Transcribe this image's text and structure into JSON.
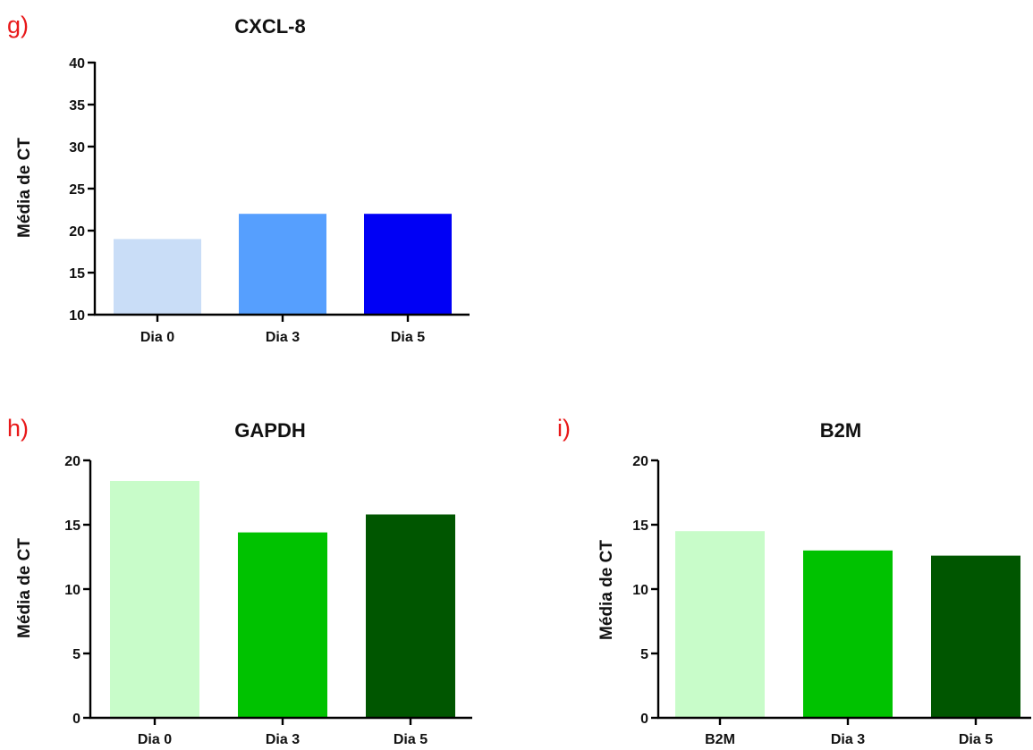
{
  "chart_data": [
    {
      "panel_label": "g)",
      "type": "bar",
      "title": "CXCL-8",
      "ylabel": "Média de CT",
      "categories": [
        "Dia 0",
        "Dia 3",
        "Dia 5"
      ],
      "values": [
        19,
        22,
        22
      ],
      "colors": [
        "#c9ddf7",
        "#569ffe",
        "#0000f5"
      ],
      "ylim": [
        10,
        40
      ],
      "yticks": [
        "10",
        "15",
        "20",
        "25",
        "30",
        "35",
        "40"
      ],
      "grid": false
    },
    {
      "panel_label": "h)",
      "type": "bar",
      "title": "GAPDH",
      "ylabel": "Média de CT",
      "categories": [
        "Dia 0",
        "Dia 3",
        "Dia 5"
      ],
      "values": [
        18.4,
        14.4,
        15.8
      ],
      "colors": [
        "#c8fcc9",
        "#00c200",
        "#005600"
      ],
      "ylim": [
        0,
        20
      ],
      "yticks": [
        "0",
        "5",
        "10",
        "15",
        "20"
      ],
      "grid": false
    },
    {
      "panel_label": "i)",
      "type": "bar",
      "title": "B2M",
      "ylabel": "Média de CT",
      "categories": [
        "B2M",
        "Dia 3",
        "Dia 5"
      ],
      "values": [
        14.5,
        13,
        12.6
      ],
      "colors": [
        "#c8fcc9",
        "#00c200",
        "#005600"
      ],
      "ylim": [
        0,
        20
      ],
      "yticks": [
        "0",
        "5",
        "10",
        "15",
        "20"
      ],
      "grid": false
    }
  ]
}
